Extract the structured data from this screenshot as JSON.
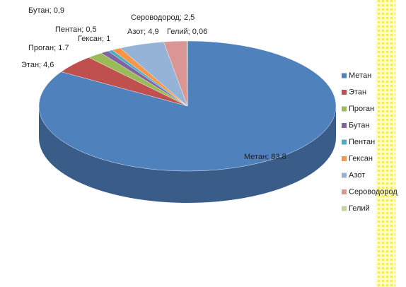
{
  "chart_data": {
    "type": "pie",
    "categories": [
      "Метан",
      "Этан",
      "Проган",
      "Бутан",
      "Пентан",
      "Гексан",
      "Азот",
      "Сероводород",
      "Гелий"
    ],
    "values": [
      83.8,
      4.6,
      1.7,
      0.9,
      0.5,
      1,
      4.9,
      2.5,
      0.06
    ],
    "value_labels": [
      "Метан; 83,8",
      "Этан; 4,6",
      "Проган; 1.7",
      "Бутан; 0,9",
      "Пентан; 0,5",
      "Гексан; 1",
      "Азот; 4,9",
      "Сероводород; 2,5",
      "Гелий; 0,06"
    ],
    "colors": [
      "#4F81BD",
      "#C0504D",
      "#9BBB59",
      "#8064A2",
      "#4BACC6",
      "#F79646",
      "#95B3D7",
      "#D99694",
      "#C3D69B"
    ],
    "legend": "right"
  }
}
